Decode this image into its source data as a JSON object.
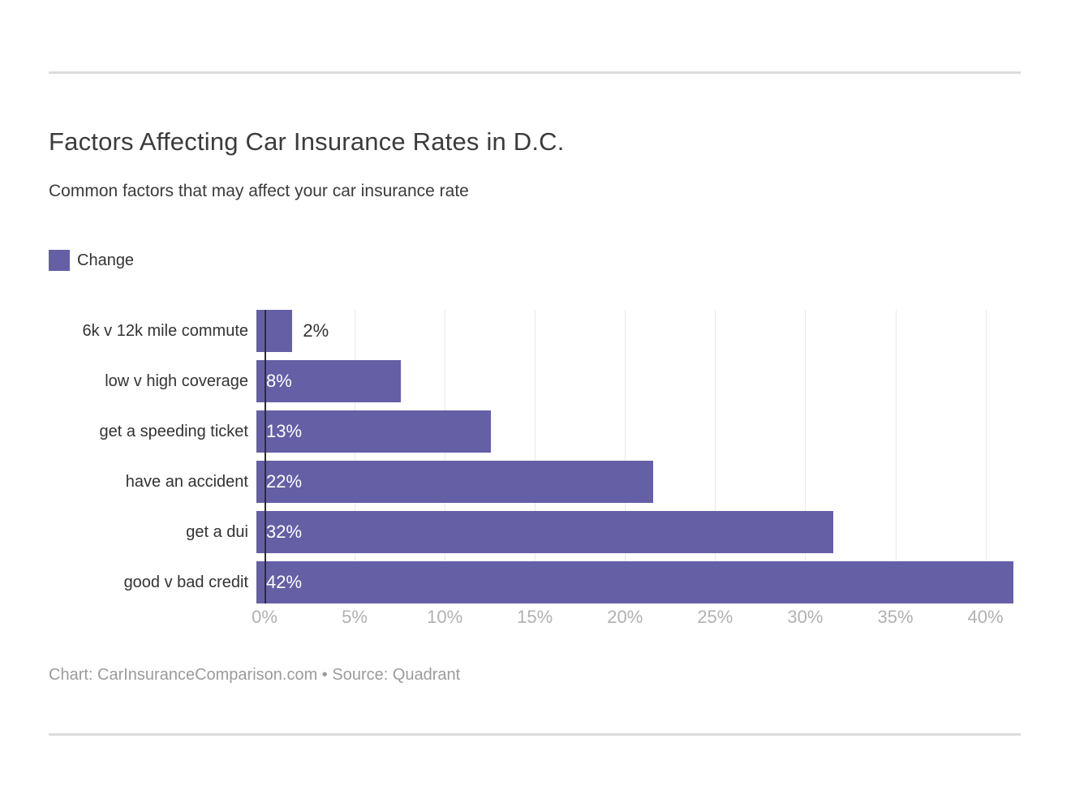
{
  "title": "Factors Affecting Car Insurance Rates in D.C.",
  "subtitle": "Common factors that may affect your car insurance rate",
  "legend": {
    "label": "Change",
    "position": "top-left"
  },
  "footer": "Chart: CarInsuranceComparison.com • Source: Quadrant",
  "colors": {
    "bar": "#655FA6",
    "title_text": "#3b3b3b",
    "axis_tick_text": "#b1b1b1",
    "gridline": "#e9e9e9",
    "zero_axis_line": "#2e2e2e",
    "divider_rule": "#dcdcdc",
    "value_label_inside": "#ffffff",
    "value_label_outside": "#333333",
    "footer_text": "#9b9b9b"
  },
  "chart_data": {
    "type": "bar",
    "orientation": "horizontal",
    "title": "Factors Affecting Car Insurance Rates in D.C.",
    "subtitle": "Common factors that may affect your car insurance rate",
    "series_name": "Change",
    "categories": [
      "6k v 12k mile commute",
      "low v high coverage",
      "get a speeding ticket",
      "have an accident",
      "get a dui",
      "good v bad credit"
    ],
    "values": [
      2,
      8,
      13,
      22,
      32,
      42
    ],
    "data_labels": [
      "2%",
      "8%",
      "13%",
      "22%",
      "32%",
      "42%"
    ],
    "label_outside_threshold": 5,
    "xlabel": "",
    "ylabel": "",
    "xlim": [
      0,
      42
    ],
    "x_ticks": [
      0,
      5,
      10,
      15,
      20,
      25,
      30,
      35,
      40
    ],
    "x_tick_labels": [
      "0%",
      "5%",
      "10%",
      "15%",
      "20%",
      "25%",
      "30%",
      "35%",
      "40%"
    ],
    "grid": "vertical",
    "legend_position": "top-left"
  }
}
